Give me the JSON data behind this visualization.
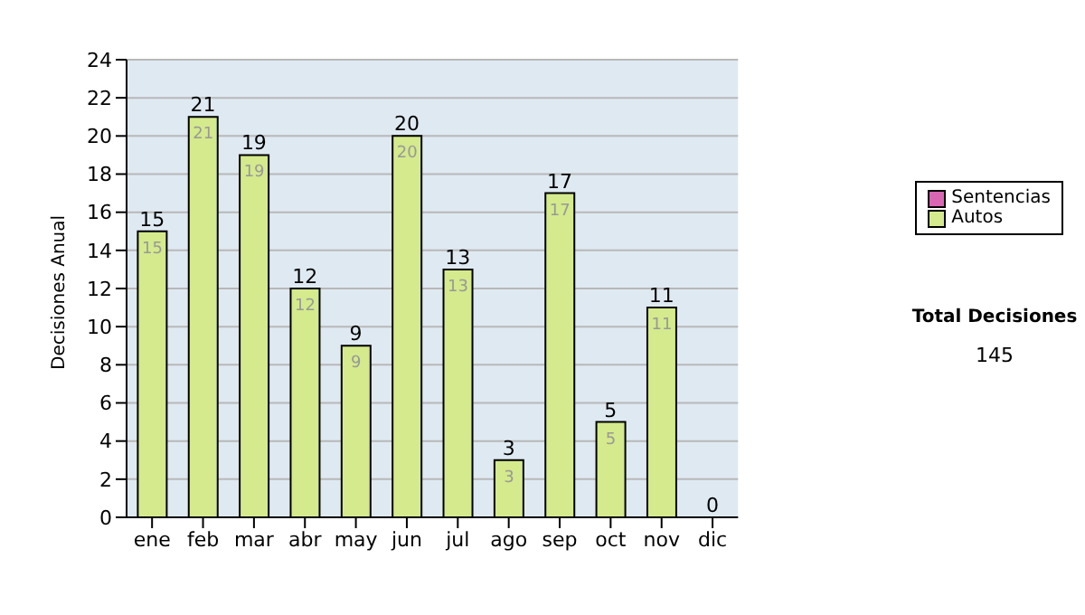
{
  "chart_data": {
    "type": "bar",
    "stacked": true,
    "ylabel": "Decisiones Anual",
    "categories": [
      "ene",
      "feb",
      "mar",
      "abr",
      "may",
      "jun",
      "jul",
      "ago",
      "sep",
      "oct",
      "nov",
      "dic"
    ],
    "series": [
      {
        "name": "Sentencias",
        "color": "#d966b3",
        "values": [
          0,
          0,
          0,
          0,
          0,
          0,
          0,
          0,
          0,
          0,
          0,
          0
        ]
      },
      {
        "name": "Autos",
        "color": "#d4ea8c",
        "values": [
          15,
          21,
          19,
          12,
          9,
          20,
          13,
          3,
          17,
          5,
          11,
          0
        ],
        "value_labels": [
          "15",
          "21",
          "19",
          "12",
          "9",
          "20",
          "13",
          "3",
          "17",
          "5",
          "11",
          null
        ]
      }
    ],
    "totals": [
      "15",
      "21",
      "19",
      "12",
      "9",
      "20",
      "13",
      "3",
      "17",
      "5",
      "11",
      "0"
    ],
    "ylim": [
      0,
      24
    ],
    "yticks": [
      0,
      2,
      4,
      6,
      8,
      10,
      12,
      14,
      16,
      18,
      20,
      22,
      24
    ],
    "grid": "y",
    "legend": "right",
    "annotations": [
      "Total Decisiones",
      "145"
    ]
  }
}
